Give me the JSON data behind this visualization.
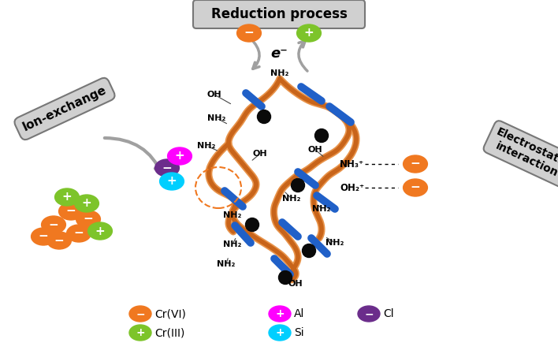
{
  "title": "Reduction process",
  "ion_exchange_label": "Ion-exchange",
  "electrostatic_label": "Electrostatic\ninteraction",
  "electron_label": "e⁻",
  "bg_color": "#ffffff",
  "orange_color": "#F07820",
  "green_color": "#7DC42A",
  "magenta_color": "#FF00FF",
  "cyan_color": "#00CFFF",
  "purple_color": "#6B2D8B",
  "blue_rod_color": "#2060C8",
  "orange_wire_color": "#C8641A",
  "black_dot_color": "#0a0a0a",
  "gray_box_color": "#D0D0D0",
  "dark_gray_arrow": "#A0A0A0",
  "figw": 7.08,
  "figh": 4.49,
  "dpi": 100
}
